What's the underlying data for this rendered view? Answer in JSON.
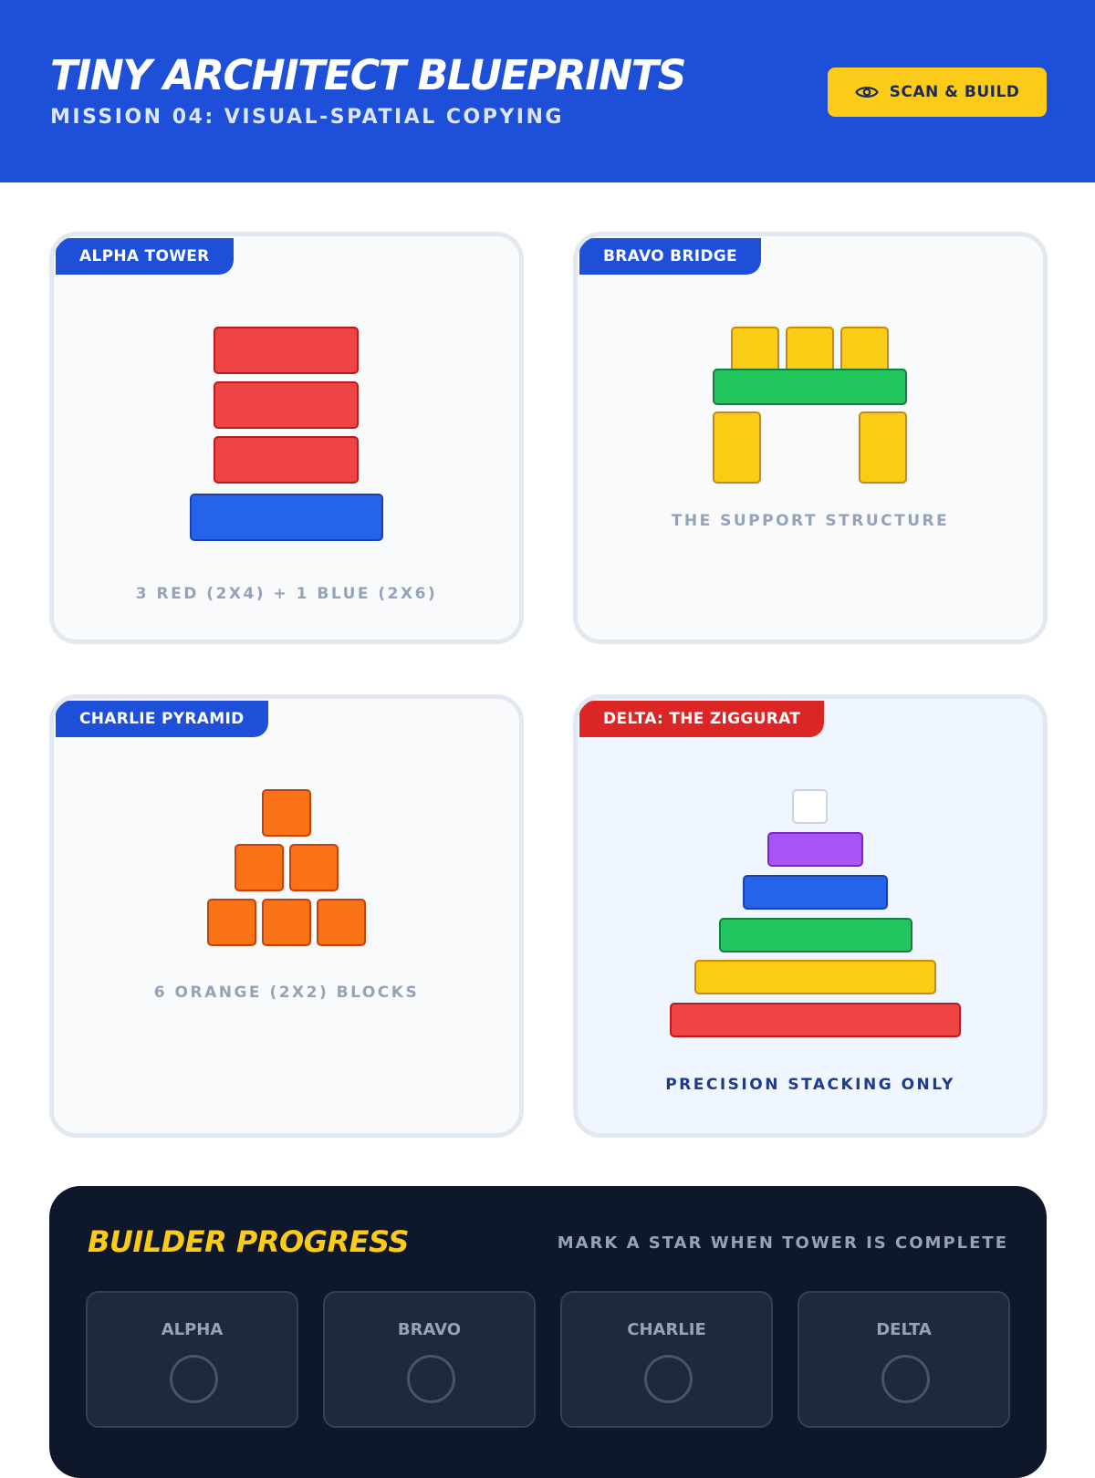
{
  "header": {
    "title": "TINY ARCHITECT BLUEPRINTS",
    "subtitle": "MISSION 04: VISUAL-SPATIAL COPYING",
    "scan_button": {
      "label": "SCAN & BUILD",
      "icon": "eye-icon"
    }
  },
  "cards": [
    {
      "tab": "ALPHA TOWER",
      "caption": "3 RED (2X4) + 1 BLUE (2X6)"
    },
    {
      "tab": "BRAVO BRIDGE",
      "caption": "THE SUPPORT STRUCTURE"
    },
    {
      "tab": "CHARLIE PYRAMID",
      "caption": "6 ORANGE (2X2) BLOCKS"
    },
    {
      "tab": "DELTA: THE ZIGGURAT",
      "caption": "PRECISION STACKING ONLY"
    }
  ],
  "progress": {
    "title": "BUILDER PROGRESS",
    "hint": "MARK A STAR WHEN TOWER IS COMPLETE",
    "slots": [
      {
        "label": "ALPHA",
        "complete": false
      },
      {
        "label": "BRAVO",
        "complete": false
      },
      {
        "label": "CHARLIE",
        "complete": false
      },
      {
        "label": "DELTA",
        "complete": false
      }
    ]
  },
  "colors": {
    "header_bg": "#1e4fd8",
    "accent_yellow": "#fbcb17",
    "delta_tab": "#dc2626",
    "progress_bg": "#0f172a"
  }
}
